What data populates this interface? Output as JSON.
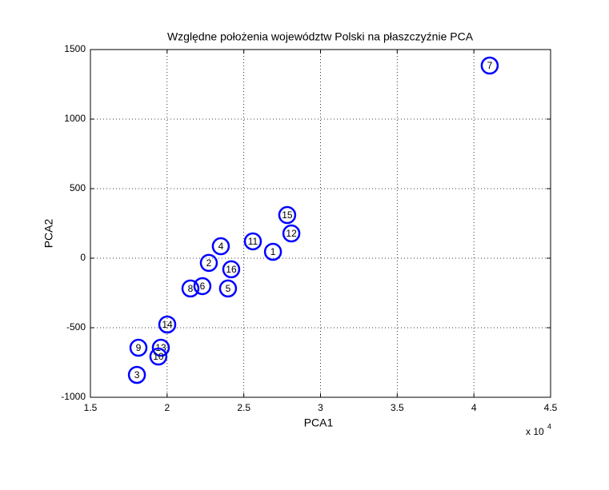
{
  "chart_data": {
    "type": "scatter",
    "title": "Względne położenia województw Polski na płaszczyźnie PCA",
    "x_label": "PCA1",
    "y_label": "PCA2",
    "x_multiplier": "x 10",
    "x_multiplier_exponent": "4",
    "point_labels": [
      "7",
      "15",
      "12",
      "11",
      "1",
      "4",
      "2",
      "16",
      "8",
      "6",
      "5",
      "14",
      "9",
      "13",
      "10",
      "3"
    ],
    "x": [
      41030,
      27830,
      28100,
      25590,
      26900,
      23500,
      22720,
      24180,
      21520,
      22300,
      23970,
      20010,
      18130,
      19590,
      19430,
      18030
    ],
    "y": [
      1385,
      310,
      178,
      121,
      46,
      86,
      -34,
      -80,
      -218,
      -201,
      -218,
      -477,
      -644,
      -644,
      -707,
      -839
    ],
    "color": "#0000ff",
    "xlim": [
      15000,
      45000
    ],
    "xticks": [
      {
        "value": 15000,
        "label": "1.5"
      },
      {
        "value": 20000,
        "label": "2"
      },
      {
        "value": 25000,
        "label": "2.5"
      },
      {
        "value": 30000,
        "label": "3"
      },
      {
        "value": 35000,
        "label": "3.5"
      },
      {
        "value": 40000,
        "label": "4"
      },
      {
        "value": 45000,
        "label": "4.5"
      }
    ],
    "ylim": [
      -1000,
      1500
    ],
    "yticks": [
      -1000,
      -500,
      0,
      500,
      1000,
      1500
    ],
    "grid": true
  }
}
